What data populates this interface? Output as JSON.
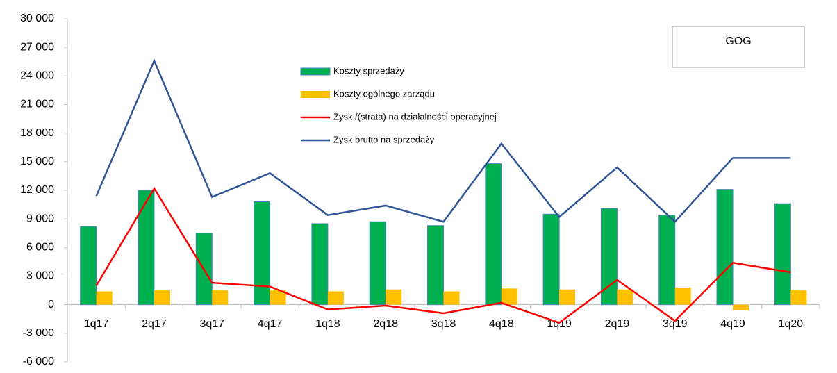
{
  "chart_data": {
    "type": "combo",
    "annotation": "GOG",
    "categories": [
      "1q17",
      "2q17",
      "3q17",
      "4q17",
      "1q18",
      "2q18",
      "3q18",
      "4q18",
      "1q19",
      "2q19",
      "3q19",
      "4q19",
      "1q20"
    ],
    "series": [
      {
        "name": "Koszty sprzedaży",
        "kind": "bar",
        "color": "#00b050",
        "values": [
          8200,
          12000,
          7500,
          10800,
          8500,
          8700,
          8300,
          14800,
          9500,
          10100,
          9400,
          12100,
          10600
        ]
      },
      {
        "name": "Koszty ogólnego zarządu",
        "kind": "bar",
        "color": "#ffc000",
        "values": [
          1400,
          1500,
          1500,
          1500,
          1400,
          1600,
          1400,
          1700,
          1600,
          1600,
          1800,
          -600,
          1500
        ]
      },
      {
        "name": "Zysk /(strata) na działalności operacyjnej",
        "kind": "line",
        "color": "#ff0000",
        "values": [
          2000,
          12200,
          2300,
          1900,
          -500,
          -100,
          -900,
          200,
          -1900,
          2600,
          -1700,
          4400,
          3400
        ]
      },
      {
        "name": "Zysk brutto na sprzedaży",
        "kind": "line",
        "color": "#2f5597",
        "values": [
          11400,
          25600,
          11300,
          13800,
          9400,
          10400,
          8700,
          16900,
          9200,
          14400,
          8700,
          15400,
          15400
        ]
      }
    ],
    "ylim": [
      -6000,
      30000
    ],
    "yticks": [
      {
        "value": -6000,
        "label": "-6 000"
      },
      {
        "value": -3000,
        "label": "-3 000"
      },
      0,
      {
        "value": 3000,
        "label": "3 000"
      },
      {
        "value": 6000,
        "label": "6 000"
      },
      {
        "value": 9000,
        "label": "9 000"
      },
      {
        "value": 12000,
        "label": "12 000"
      },
      {
        "value": 15000,
        "label": "15 000"
      },
      {
        "value": 18000,
        "label": "18 000"
      },
      {
        "value": 21000,
        "label": "21 000"
      },
      {
        "value": 24000,
        "label": "24 000"
      },
      {
        "value": 27000,
        "label": "27 000"
      },
      {
        "value": 30000,
        "label": "30 000"
      }
    ]
  }
}
